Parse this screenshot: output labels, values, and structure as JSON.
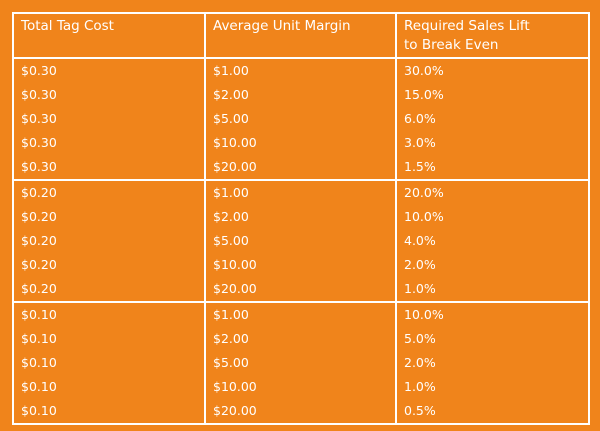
{
  "headers": {
    "total_tag_cost": "Total Tag Cost",
    "average_unit_margin": "Average Unit Margin",
    "required_sales_lift_line1": "Required Sales Lift",
    "required_sales_lift_line2": "to Break Even"
  },
  "groups": [
    {
      "rows": [
        {
          "cost": "$0.30",
          "margin": "$1.00",
          "lift": "30.0%"
        },
        {
          "cost": "$0.30",
          "margin": "$2.00",
          "lift": "15.0%"
        },
        {
          "cost": "$0.30",
          "margin": "$5.00",
          "lift": "6.0%"
        },
        {
          "cost": "$0.30",
          "margin": "$10.00",
          "lift": "3.0%"
        },
        {
          "cost": "$0.30",
          "margin": "$20.00",
          "lift": "1.5%"
        }
      ]
    },
    {
      "rows": [
        {
          "cost": "$0.20",
          "margin": "$1.00",
          "lift": "20.0%"
        },
        {
          "cost": "$0.20",
          "margin": "$2.00",
          "lift": "10.0%"
        },
        {
          "cost": "$0.20",
          "margin": "$5.00",
          "lift": "4.0%"
        },
        {
          "cost": "$0.20",
          "margin": "$10.00",
          "lift": "2.0%"
        },
        {
          "cost": "$0.20",
          "margin": "$20.00",
          "lift": "1.0%"
        }
      ]
    },
    {
      "rows": [
        {
          "cost": "$0.10",
          "margin": "$1.00",
          "lift": "10.0%"
        },
        {
          "cost": "$0.10",
          "margin": "$2.00",
          "lift": "5.0%"
        },
        {
          "cost": "$0.10",
          "margin": "$5.00",
          "lift": "2.0%"
        },
        {
          "cost": "$0.10",
          "margin": "$10.00",
          "lift": "1.0%"
        },
        {
          "cost": "$0.10",
          "margin": "$20.00",
          "lift": "0.5%"
        }
      ]
    }
  ],
  "colors": {
    "background": "#F0841B",
    "text": "#FFFFFF",
    "border": "#FFFFFF"
  }
}
